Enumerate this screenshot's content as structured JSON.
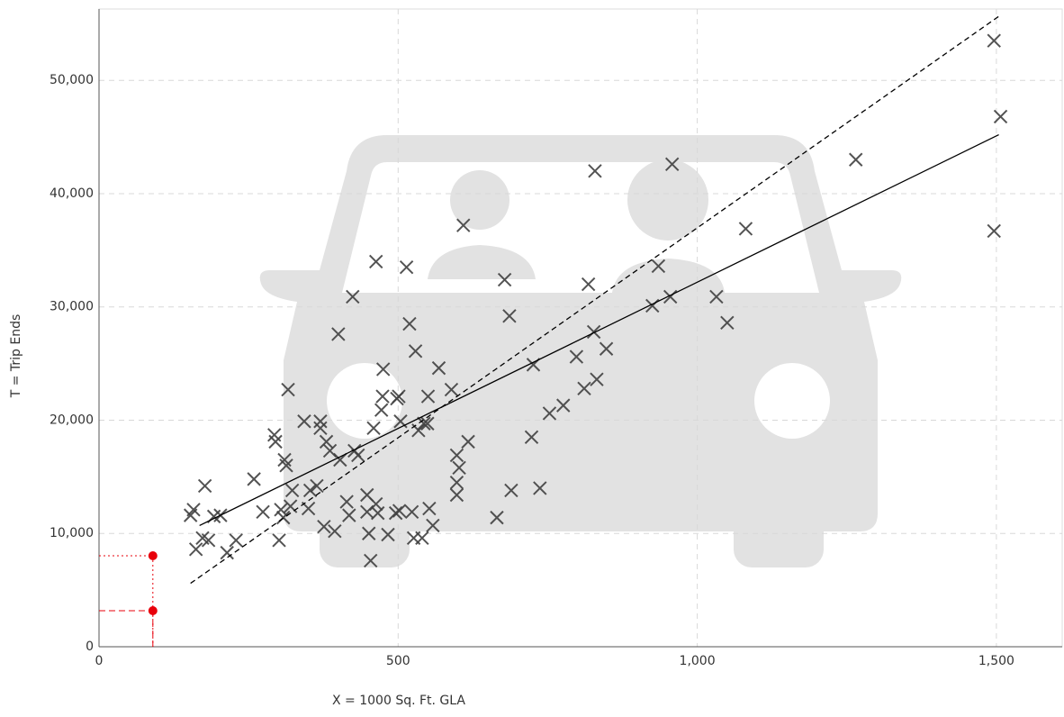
{
  "chart_data": {
    "type": "scatter",
    "xlabel": "X = 1000 Sq. Ft. GLA",
    "ylabel": "T = Trip Ends",
    "xlim": [
      0,
      1610
    ],
    "ylim": [
      0,
      56300
    ],
    "xticks": [
      0,
      500,
      {
        "value": 1000,
        "label": "1,000"
      },
      {
        "value": 1500,
        "label": "1,500"
      }
    ],
    "yticks": [
      0,
      {
        "value": 10000,
        "label": "10,000"
      },
      {
        "value": 20000,
        "label": "20,000"
      },
      {
        "value": 30000,
        "label": "30,000"
      },
      {
        "value": 40000,
        "label": "40,000"
      },
      {
        "value": 50000,
        "label": "50,000"
      }
    ],
    "grid": true,
    "series": [
      {
        "type": "scatter",
        "marker": "x",
        "color": "#404040",
        "x": [
          153,
          158,
          162,
          177,
          173,
          183,
          192,
          203,
          214,
          229,
          259,
          274,
          293,
          295,
          304,
          301,
          308,
          310,
          313,
          316,
          320,
          323,
          343,
          350,
          353,
          364,
          370,
          370,
          376,
          380,
          386,
          394,
          400,
          403,
          414,
          418,
          424,
          427,
          433,
          448,
          448,
          451,
          454,
          459,
          463,
          463,
          466,
          472,
          474,
          475,
          483,
          496,
          498,
          501,
          502,
          504,
          514,
          519,
          523,
          526,
          529,
          534,
          540,
          543,
          549,
          550,
          552,
          558,
          568,
          589,
          598,
          598,
          598,
          602,
          609,
          617,
          665,
          678,
          686,
          689,
          723,
          726,
          737,
          753,
          776,
          798,
          811,
          818,
          827,
          829,
          832,
          848,
          925,
          935,
          955,
          958,
          1032,
          1050,
          1081,
          1265,
          1496,
          1496,
          1507
        ],
        "values": [
          11600,
          12100,
          8600,
          14200,
          9600,
          9400,
          11500,
          11600,
          8300,
          9400,
          14800,
          11900,
          18700,
          18100,
          12100,
          9400,
          11400,
          16500,
          16000,
          22700,
          12400,
          13800,
          19900,
          12200,
          13800,
          14200,
          19900,
          19300,
          10600,
          18100,
          17300,
          10200,
          27600,
          16500,
          12800,
          11600,
          30900,
          17300,
          16900,
          11900,
          13400,
          10000,
          7600,
          19300,
          12600,
          34000,
          11800,
          20900,
          22100,
          24500,
          9900,
          11800,
          21900,
          22100,
          12000,
          19900,
          33500,
          28500,
          11900,
          9600,
          26100,
          19100,
          9600,
          19700,
          19700,
          22100,
          12200,
          10700,
          24600,
          22700,
          16900,
          13400,
          14500,
          15800,
          37200,
          18100,
          11400,
          32400,
          29200,
          13800,
          18500,
          24900,
          14000,
          20600,
          21300,
          25600,
          22800,
          32000,
          27800,
          42000,
          23600,
          26300,
          30100,
          33600,
          30900,
          42600,
          30900,
          28600,
          36900,
          43000,
          53500,
          36700,
          46800
        ]
      },
      {
        "type": "line",
        "dash": "solid",
        "color": "#000000",
        "x": [
          168,
          1504
        ],
        "values": [
          10700,
          45200
        ]
      },
      {
        "type": "line",
        "dash": "dashed",
        "color": "#000000",
        "x": [
          153,
          1508
        ],
        "values": [
          5600,
          55800
        ]
      },
      {
        "type": "point",
        "color": "#e8000b",
        "x": [
          90,
          90
        ],
        "values": [
          8030,
          3180
        ]
      }
    ]
  }
}
